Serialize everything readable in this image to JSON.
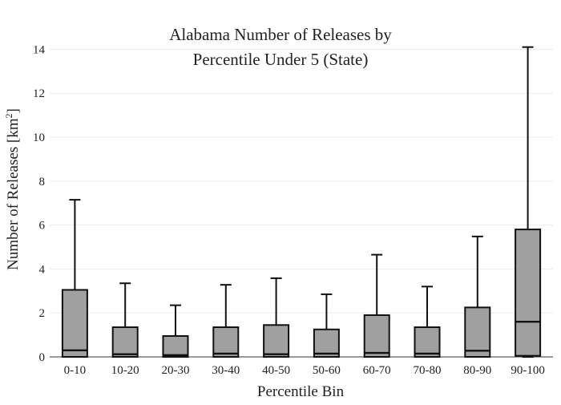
{
  "chart_data": {
    "type": "box",
    "title_line1": "Alabama Number of Releases by",
    "title_line2": "Percentile Under 5 (State)",
    "xlabel": "Percentile Bin",
    "ylabel_main": "Number of Releases  [km",
    "ylabel_sup": "2",
    "ylabel_close": "]",
    "ylim": [
      0,
      14.6
    ],
    "yticks": [
      0,
      2,
      4,
      6,
      8,
      10,
      12,
      14
    ],
    "grid": true,
    "categories": [
      "0-10",
      "10-20",
      "20-30",
      "30-40",
      "40-50",
      "50-60",
      "60-70",
      "70-80",
      "80-90",
      "90-100"
    ],
    "series": [
      {
        "min": [
          0,
          0,
          0,
          0,
          0,
          0,
          0,
          0,
          0,
          0
        ],
        "q1": [
          0,
          0,
          0,
          0,
          0,
          0,
          0,
          0,
          0,
          0.05
        ],
        "median": [
          0.3,
          0.12,
          0.08,
          0.15,
          0.12,
          0.15,
          0.18,
          0.15,
          0.28,
          1.6
        ],
        "q3": [
          3.05,
          1.35,
          0.95,
          1.35,
          1.45,
          1.25,
          1.9,
          1.35,
          2.25,
          5.8
        ],
        "max": [
          7.15,
          3.35,
          2.35,
          3.28,
          3.58,
          2.85,
          4.65,
          3.2,
          5.48,
          14.1
        ]
      }
    ]
  }
}
